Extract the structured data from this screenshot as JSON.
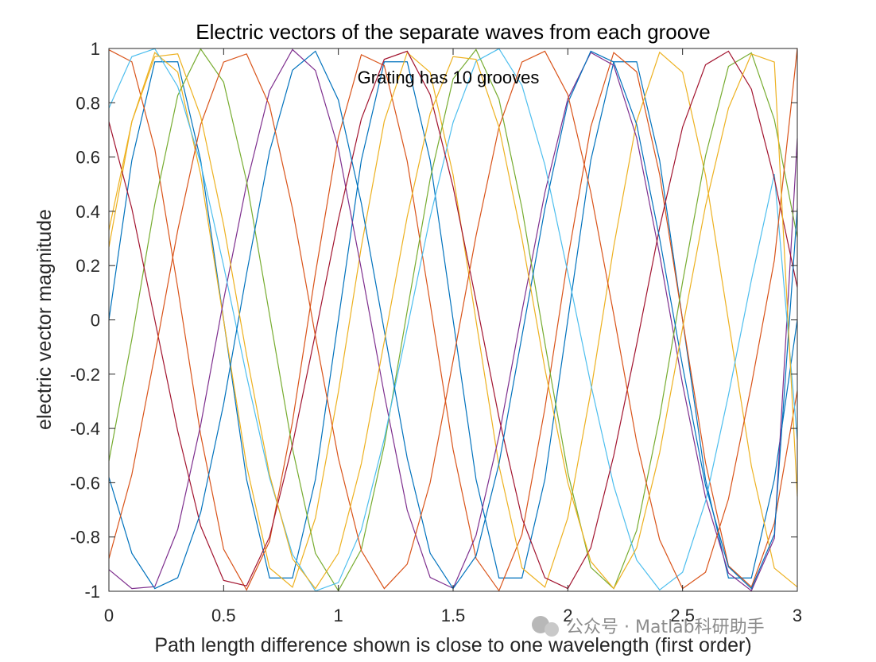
{
  "chart_data": {
    "type": "line",
    "title": "Electric vectors of the separate waves from each groove",
    "annotation": "Grating has 10 grooves",
    "xlabel": "Path length difference shown is close to one wavelength (first order)",
    "ylabel": "electric vector magnitude",
    "xlim": [
      0,
      3
    ],
    "ylim": [
      -1,
      1
    ],
    "xticks": [
      "0",
      "0.5",
      "1",
      "1.5",
      "2",
      "2.5",
      "3"
    ],
    "yticks": [
      "-1",
      "-0.8",
      "-0.6",
      "-0.4",
      "-0.2",
      "0",
      "0.2",
      "0.4",
      "0.6",
      "0.8",
      "1"
    ],
    "grid": false,
    "x": [
      0,
      0.1,
      0.2,
      0.3,
      0.4,
      0.5,
      0.6,
      0.7,
      0.8,
      0.9,
      1.0,
      1.1,
      1.2,
      1.3,
      1.4,
      1.5,
      1.6,
      1.7,
      1.8,
      1.9,
      2.0,
      2.1,
      2.2,
      2.3,
      2.4,
      2.5,
      2.6,
      2.7,
      2.8,
      2.9,
      3.0
    ],
    "series": [
      {
        "color": "#0072bd",
        "values": [
          0.0,
          0.588,
          0.951,
          0.951,
          0.588,
          0.0,
          -0.588,
          -0.951,
          -0.951,
          -0.588,
          0.0,
          0.588,
          0.951,
          0.951,
          0.588,
          0.0,
          -0.588,
          -0.951,
          -0.951,
          -0.588,
          0.0,
          0.588,
          0.951,
          0.951,
          0.588,
          0.0,
          -0.588,
          -0.951,
          -0.951,
          -0.588,
          0.0
        ]
      },
      {
        "color": "#d95319",
        "values": [
          0.995,
          0.951,
          0.63,
          0.118,
          -0.424,
          -0.845,
          -0.995,
          -0.816,
          -0.376,
          0.171,
          0.674,
          0.977,
          0.937,
          0.585,
          0.061,
          -0.478,
          -0.879,
          -0.998,
          -0.791,
          -0.326,
          0.225,
          0.711,
          0.985,
          0.914,
          0.536,
          0.0,
          -0.526,
          -0.906,
          -0.984,
          -0.749,
          -0.261
        ]
      },
      {
        "color": "#edb120",
        "values": [
          0.268,
          0.731,
          0.985,
          0.913,
          0.535,
          -0.002,
          -0.537,
          -0.914,
          -0.985,
          -0.73,
          -0.266,
          0.269,
          0.732,
          0.985,
          0.912,
          0.534,
          -0.003,
          -0.538,
          -0.914,
          -0.985,
          -0.729,
          -0.265,
          0.27,
          0.732,
          0.986,
          0.912,
          0.533,
          -0.004,
          -0.539,
          -0.915,
          -0.984
        ]
      },
      {
        "color": "#7e2f8e",
        "values": [
          -0.92,
          -0.99,
          -0.983,
          -0.772,
          -0.387,
          0.074,
          0.5,
          0.844,
          0.996,
          0.919,
          0.631,
          0.187,
          -0.274,
          -0.701,
          -0.949,
          -0.989,
          -0.794,
          -0.428,
          0.031,
          0.469,
          0.815,
          0.985,
          0.938,
          0.671,
          0.24,
          -0.237,
          -0.654,
          -0.933,
          -0.998,
          -0.805,
          0.668
        ]
      },
      {
        "color": "#77ac30",
        "values": [
          -0.52,
          -0.071,
          0.426,
          0.827,
          0.998,
          0.876,
          0.511,
          0.019,
          -0.474,
          -0.86,
          -0.998,
          -0.846,
          -0.462,
          0.033,
          0.519,
          0.888,
          0.996,
          0.813,
          0.412,
          -0.086,
          -0.563,
          -0.912,
          -0.99,
          -0.776,
          -0.359,
          0.139,
          0.604,
          0.934,
          0.984,
          0.738,
          0.304
        ]
      },
      {
        "color": "#4dbeee",
        "values": [
          0.78,
          0.97,
          0.999,
          0.86,
          0.576,
          0.199,
          -0.206,
          -0.582,
          -0.864,
          -0.999,
          -0.968,
          -0.774,
          -0.438,
          -0.031,
          0.378,
          0.728,
          0.953,
          0.999,
          0.864,
          0.571,
          0.174,
          -0.237,
          -0.611,
          -0.885,
          -0.995,
          -0.93,
          -0.669,
          -0.277,
          0.147,
          0.537,
          -0.44
        ]
      },
      {
        "color": "#a2142f",
        "values": [
          0.73,
          0.41,
          0.0,
          -0.41,
          -0.76,
          -0.96,
          -0.98,
          -0.8,
          -0.46,
          -0.05,
          0.37,
          0.74,
          0.96,
          0.99,
          0.83,
          0.49,
          0.07,
          -0.36,
          -0.73,
          -0.95,
          -0.99,
          -0.84,
          -0.5,
          -0.09,
          0.34,
          0.71,
          0.94,
          0.99,
          0.85,
          0.52,
          0.12
        ]
      },
      {
        "color": "#0072bd",
        "values": [
          -0.58,
          -0.86,
          -0.99,
          -0.95,
          -0.71,
          -0.31,
          0.17,
          0.62,
          0.92,
          0.99,
          0.81,
          0.43,
          -0.04,
          -0.51,
          -0.86,
          -0.99,
          -0.87,
          -0.53,
          -0.06,
          0.41,
          0.8,
          0.99,
          0.95,
          0.72,
          0.3,
          -0.17,
          -0.61,
          -0.91,
          -0.99,
          -0.79,
          0.41
        ]
      },
      {
        "color": "#d95319",
        "values": [
          -0.88,
          -0.57,
          -0.13,
          0.33,
          0.72,
          0.95,
          0.98,
          0.79,
          0.41,
          -0.06,
          -0.51,
          -0.85,
          -0.99,
          -0.9,
          -0.6,
          -0.15,
          0.31,
          0.71,
          0.95,
          0.99,
          0.83,
          0.47,
          0.02,
          -0.45,
          -0.81,
          -0.99,
          -0.93,
          -0.66,
          -0.24,
          0.22,
          1.0
        ]
      },
      {
        "color": "#edb120",
        "values": [
          0.33,
          0.73,
          0.97,
          0.98,
          0.75,
          0.35,
          -0.13,
          -0.57,
          -0.88,
          -0.99,
          -0.86,
          -0.53,
          -0.08,
          0.38,
          0.76,
          0.97,
          0.96,
          0.71,
          0.3,
          -0.18,
          -0.6,
          -0.89,
          -0.99,
          -0.84,
          -0.49,
          -0.03,
          0.42,
          0.78,
          0.98,
          0.95,
          -0.65
        ]
      }
    ]
  },
  "watermark": "公众号 · Matlab科研助手"
}
